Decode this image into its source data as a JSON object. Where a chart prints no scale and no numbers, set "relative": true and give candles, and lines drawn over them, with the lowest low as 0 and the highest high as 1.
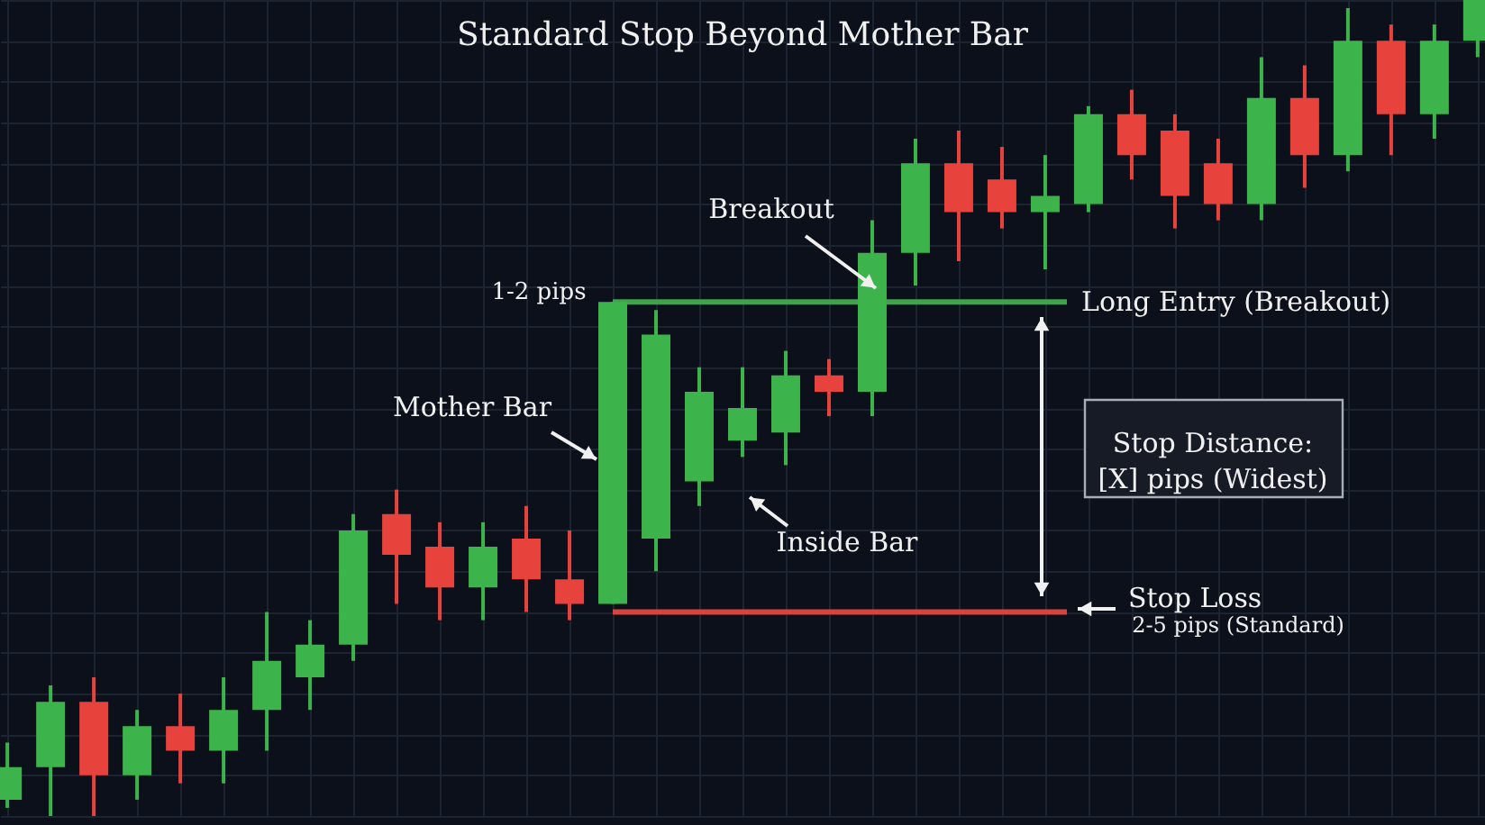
{
  "chart_data": {
    "type": "candlestick",
    "title": "Standard Stop Beyond Mother Bar",
    "relative": true,
    "grid": true,
    "categories": [
      null,
      null,
      null,
      null,
      null,
      null,
      null,
      null,
      null,
      null,
      null,
      null,
      null,
      null,
      null,
      null,
      null,
      null,
      null,
      null,
      null,
      null,
      null,
      null,
      null,
      null,
      null,
      null,
      null,
      null,
      null,
      null,
      null,
      null,
      null
    ],
    "ohlc": [
      [
        0.02,
        0.09,
        0.01,
        0.06
      ],
      [
        0.06,
        0.16,
        0.0,
        0.14
      ],
      [
        0.14,
        0.17,
        0.0,
        0.05
      ],
      [
        0.05,
        0.13,
        0.02,
        0.11
      ],
      [
        0.11,
        0.15,
        0.04,
        0.08
      ],
      [
        0.08,
        0.17,
        0.04,
        0.13
      ],
      [
        0.13,
        0.25,
        0.08,
        0.19
      ],
      [
        0.17,
        0.24,
        0.13,
        0.21
      ],
      [
        0.21,
        0.37,
        0.19,
        0.35
      ],
      [
        0.37,
        0.4,
        0.26,
        0.32
      ],
      [
        0.33,
        0.36,
        0.24,
        0.28
      ],
      [
        0.28,
        0.36,
        0.24,
        0.33
      ],
      [
        0.34,
        0.38,
        0.25,
        0.29
      ],
      [
        0.29,
        0.35,
        0.24,
        0.26
      ],
      [
        0.26,
        0.63,
        0.26,
        0.63
      ],
      [
        0.34,
        0.62,
        0.3,
        0.59
      ],
      [
        0.41,
        0.55,
        0.38,
        0.52
      ],
      [
        0.46,
        0.55,
        0.44,
        0.5
      ],
      [
        0.47,
        0.57,
        0.43,
        0.54
      ],
      [
        0.54,
        0.56,
        0.49,
        0.52
      ],
      [
        0.52,
        0.73,
        0.49,
        0.69
      ],
      [
        0.69,
        0.83,
        0.65,
        0.8
      ],
      [
        0.8,
        0.84,
        0.68,
        0.74
      ],
      [
        0.78,
        0.82,
        0.72,
        0.74
      ],
      [
        0.74,
        0.81,
        0.67,
        0.76
      ],
      [
        0.75,
        0.87,
        0.74,
        0.86
      ],
      [
        0.86,
        0.89,
        0.78,
        0.81
      ],
      [
        0.84,
        0.86,
        0.72,
        0.76
      ],
      [
        0.8,
        0.83,
        0.73,
        0.75
      ],
      [
        0.75,
        0.93,
        0.73,
        0.88
      ],
      [
        0.88,
        0.92,
        0.77,
        0.81
      ],
      [
        0.81,
        0.99,
        0.79,
        0.95
      ],
      [
        0.95,
        0.97,
        0.81,
        0.86
      ],
      [
        0.86,
        0.97,
        0.83,
        0.95
      ],
      [
        0.95,
        1.0,
        0.93,
        1.0
      ]
    ],
    "colors": [
      "#3cb44b",
      "#3cb44b",
      "#e8423c",
      "#3cb44b",
      "#e8423c",
      "#3cb44b",
      "#3cb44b",
      "#3cb44b",
      "#3cb44b",
      "#e8423c",
      "#e8423c",
      "#3cb44b",
      "#e8423c",
      "#e8423c",
      "#3cb44b",
      "#3cb44b",
      "#3cb44b",
      "#3cb44b",
      "#3cb44b",
      "#e8423c",
      "#3cb44b",
      "#3cb44b",
      "#e8423c",
      "#e8423c",
      "#3cb44b",
      "#3cb44b",
      "#e8423c",
      "#e8423c",
      "#e8423c",
      "#3cb44b",
      "#e8423c",
      "#3cb44b",
      "#e8423c",
      "#3cb44b",
      "#3cb44b"
    ],
    "ref_lines": [
      {
        "axis": "y",
        "value": 0.63,
        "label": "Long Entry (Breakout)",
        "color": "#3fa34d"
      },
      {
        "axis": "y",
        "value": 0.25,
        "label": "Stop Loss",
        "color": "#d9433d"
      }
    ],
    "annotations": [
      "1-2 pips",
      "Mother Bar",
      "Breakout",
      "Inside Bar",
      "Stop Distance:\n[X] pips (Widest)",
      "2-5 pips (Standard)"
    ]
  }
}
